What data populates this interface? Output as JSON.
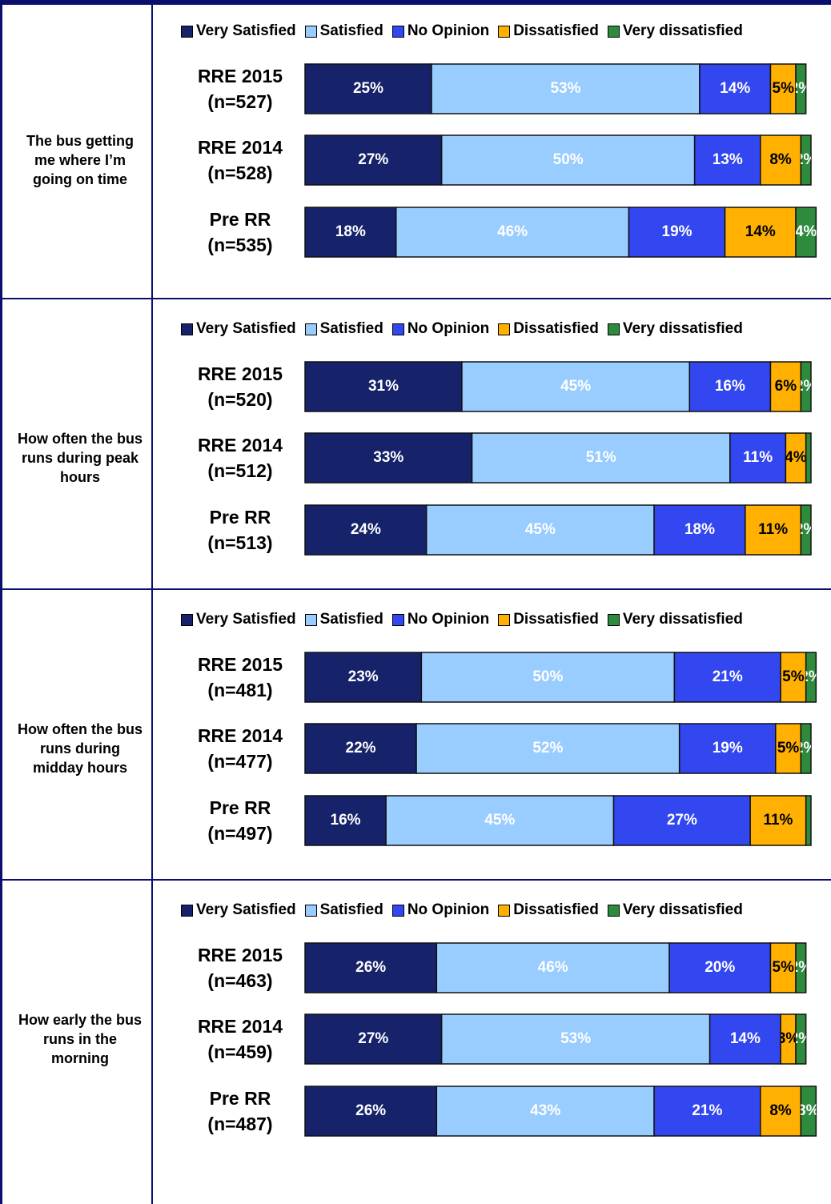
{
  "chart_data": [
    {
      "type": "bar",
      "title": "The bus getting me where I’m going on time",
      "categories": [
        "RRE 2015 (n=527)",
        "RRE 2014 (n=528)",
        "Pre RR (n=535)"
      ],
      "series": [
        {
          "name": "Very Satisfied",
          "color": "#16236b",
          "label_color": "#ffffff",
          "values": [
            25,
            27,
            18
          ],
          "value_labels": [
            "25%",
            "27%",
            "18%"
          ]
        },
        {
          "name": "Satisfied",
          "color": "#99ccff",
          "label_color": "#ffffff",
          "values": [
            53,
            50,
            46
          ],
          "value_labels": [
            "53%",
            "50%",
            "46%"
          ]
        },
        {
          "name": "No Opinion",
          "color": "#3347f0",
          "label_color": "#ffffff",
          "values": [
            14,
            13,
            19
          ],
          "value_labels": [
            "14%",
            "13%",
            "19%"
          ]
        },
        {
          "name": "Dissatisfied",
          "color": "#ffb000",
          "label_color": "#000000",
          "values": [
            5,
            8,
            14
          ],
          "value_labels": [
            "5%",
            "8%",
            "14%"
          ]
        },
        {
          "name": "Very dissatisfied",
          "color": "#2e8b3e",
          "label_color": "#ffffff",
          "values": [
            2,
            2,
            4
          ],
          "value_labels": [
            "2%",
            "2%",
            "4%"
          ]
        }
      ]
    },
    {
      "type": "bar",
      "title": "How often the bus runs during peak hours",
      "categories": [
        "RRE 2015 (n=520)",
        "RRE 2014 (n=512)",
        "Pre RR (n=513)"
      ],
      "series": [
        {
          "name": "Very Satisfied",
          "color": "#16236b",
          "label_color": "#ffffff",
          "values": [
            31,
            33,
            24
          ],
          "value_labels": [
            "31%",
            "33%",
            "24%"
          ]
        },
        {
          "name": "Satisfied",
          "color": "#99ccff",
          "label_color": "#ffffff",
          "values": [
            45,
            51,
            45
          ],
          "value_labels": [
            "45%",
            "51%",
            "45%"
          ]
        },
        {
          "name": "No Opinion",
          "color": "#3347f0",
          "label_color": "#ffffff",
          "values": [
            16,
            11,
            18
          ],
          "value_labels": [
            "16%",
            "11%",
            "18%"
          ]
        },
        {
          "name": "Dissatisfied",
          "color": "#ffb000",
          "label_color": "#000000",
          "values": [
            6,
            4,
            11
          ],
          "value_labels": [
            "6%",
            "4%",
            "11%"
          ]
        },
        {
          "name": "Very dissatisfied",
          "color": "#2e8b3e",
          "label_color": "#ffffff",
          "values": [
            2,
            1,
            2
          ],
          "value_labels": [
            "2%",
            null,
            "2%"
          ]
        }
      ]
    },
    {
      "type": "bar",
      "title": "How often the bus runs during midday hours",
      "categories": [
        "RRE 2015 (n=481)",
        "RRE 2014 (n=477)",
        "Pre RR (n=497)"
      ],
      "series": [
        {
          "name": "Very Satisfied",
          "color": "#16236b",
          "label_color": "#ffffff",
          "values": [
            23,
            22,
            16
          ],
          "value_labels": [
            "23%",
            "22%",
            "16%"
          ]
        },
        {
          "name": "Satisfied",
          "color": "#99ccff",
          "label_color": "#ffffff",
          "values": [
            50,
            52,
            45
          ],
          "value_labels": [
            "50%",
            "52%",
            "45%"
          ]
        },
        {
          "name": "No Opinion",
          "color": "#3347f0",
          "label_color": "#ffffff",
          "values": [
            21,
            19,
            27
          ],
          "value_labels": [
            "21%",
            "19%",
            "27%"
          ]
        },
        {
          "name": "Dissatisfied",
          "color": "#ffb000",
          "label_color": "#000000",
          "values": [
            5,
            5,
            11
          ],
          "value_labels": [
            "5%",
            "5%",
            "11%"
          ]
        },
        {
          "name": "Very dissatisfied",
          "color": "#2e8b3e",
          "label_color": "#ffffff",
          "values": [
            2,
            2,
            1
          ],
          "value_labels": [
            "2%",
            "2%",
            null
          ]
        }
      ]
    },
    {
      "type": "bar",
      "title": "How early the bus runs in the morning",
      "categories": [
        "RRE 2015 (n=463)",
        "RRE 2014 (n=459)",
        "Pre RR (n=487)"
      ],
      "series": [
        {
          "name": "Very Satisfied",
          "color": "#16236b",
          "label_color": "#ffffff",
          "values": [
            26,
            27,
            26
          ],
          "value_labels": [
            "26%",
            "27%",
            "26%"
          ]
        },
        {
          "name": "Satisfied",
          "color": "#99ccff",
          "label_color": "#ffffff",
          "values": [
            46,
            53,
            43
          ],
          "value_labels": [
            "46%",
            "53%",
            "43%"
          ]
        },
        {
          "name": "No Opinion",
          "color": "#3347f0",
          "label_color": "#ffffff",
          "values": [
            20,
            14,
            21
          ],
          "value_labels": [
            "20%",
            "14%",
            "21%"
          ]
        },
        {
          "name": "Dissatisfied",
          "color": "#ffb000",
          "label_color": "#000000",
          "values": [
            5,
            3,
            8
          ],
          "value_labels": [
            "5%",
            "3%",
            "8%"
          ]
        },
        {
          "name": "Very dissatisfied",
          "color": "#2e8b3e",
          "label_color": "#ffffff",
          "values": [
            2,
            2,
            3
          ],
          "value_labels": [
            "2%",
            "2%",
            "3%"
          ]
        }
      ]
    }
  ]
}
